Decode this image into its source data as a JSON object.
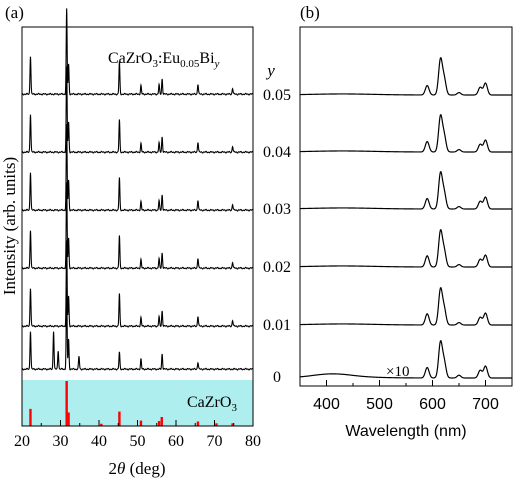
{
  "chart_data": [
    {
      "type": "line",
      "panel_label": "(a)",
      "xlabel_parts": [
        "2",
        "θ",
        " (deg)"
      ],
      "ylabel": "Intensity (arb. units)",
      "xlim": [
        20,
        80
      ],
      "xticks": [
        20,
        30,
        40,
        50,
        60,
        70,
        80
      ],
      "annotation_parts": [
        "CaZrO",
        "3",
        ":Eu",
        "0.05",
        "Bi",
        "y"
      ],
      "reference_label_parts": [
        "CaZrO",
        "3"
      ],
      "reference_color": "#ff0000",
      "reference_band_color": "#aeeeee",
      "trace_color": "#000000",
      "reference_lines": [
        {
          "x": 22.2,
          "value": 0.38
        },
        {
          "x": 31.6,
          "value": 1.0
        },
        {
          "x": 32.1,
          "value": 0.3
        },
        {
          "x": 40.6,
          "value": 0.05
        },
        {
          "x": 45.3,
          "value": 0.32
        },
        {
          "x": 50.9,
          "value": 0.12
        },
        {
          "x": 55.6,
          "value": 0.11
        },
        {
          "x": 56.3,
          "value": 0.2
        },
        {
          "x": 65.7,
          "value": 0.1
        },
        {
          "x": 70.5,
          "value": 0.06
        },
        {
          "x": 74.7,
          "value": 0.06
        }
      ],
      "series": [
        {
          "y": "0.05",
          "peaks": [
            [
              22.2,
              0.45
            ],
            [
              31.6,
              1.0
            ],
            [
              32.1,
              0.35
            ],
            [
              45.3,
              0.38
            ],
            [
              50.9,
              0.1
            ],
            [
              55.6,
              0.11
            ],
            [
              56.4,
              0.18
            ],
            [
              65.7,
              0.12
            ],
            [
              74.7,
              0.07
            ]
          ]
        },
        {
          "y": "0.04",
          "peaks": [
            [
              22.2,
              0.45
            ],
            [
              31.6,
              1.0
            ],
            [
              32.1,
              0.35
            ],
            [
              45.3,
              0.38
            ],
            [
              50.9,
              0.1
            ],
            [
              55.6,
              0.11
            ],
            [
              56.4,
              0.18
            ],
            [
              65.7,
              0.12
            ],
            [
              74.7,
              0.07
            ]
          ]
        },
        {
          "y": "0.03",
          "peaks": [
            [
              22.2,
              0.45
            ],
            [
              31.6,
              1.0
            ],
            [
              32.1,
              0.35
            ],
            [
              45.3,
              0.38
            ],
            [
              50.9,
              0.1
            ],
            [
              55.6,
              0.11
            ],
            [
              56.4,
              0.18
            ],
            [
              65.7,
              0.12
            ],
            [
              74.7,
              0.07
            ]
          ]
        },
        {
          "y": "0.02",
          "peaks": [
            [
              22.2,
              0.45
            ],
            [
              31.6,
              1.0
            ],
            [
              32.1,
              0.35
            ],
            [
              45.3,
              0.38
            ],
            [
              50.9,
              0.1
            ],
            [
              55.6,
              0.11
            ],
            [
              56.4,
              0.18
            ],
            [
              65.7,
              0.12
            ],
            [
              74.7,
              0.07
            ]
          ]
        },
        {
          "y": "0.01",
          "peaks": [
            [
              22.2,
              0.45
            ],
            [
              31.6,
              1.0
            ],
            [
              32.1,
              0.35
            ],
            [
              45.3,
              0.38
            ],
            [
              50.9,
              0.1
            ],
            [
              55.6,
              0.11
            ],
            [
              56.4,
              0.18
            ],
            [
              65.7,
              0.12
            ],
            [
              74.7,
              0.07
            ]
          ]
        },
        {
          "y": "0",
          "peaks": [
            [
              22.2,
              0.45
            ],
            [
              28.2,
              0.45
            ],
            [
              29.4,
              0.22
            ],
            [
              31.6,
              0.95
            ],
            [
              32.1,
              0.35
            ],
            [
              34.8,
              0.15
            ],
            [
              45.3,
              0.2
            ],
            [
              50.9,
              0.12
            ],
            [
              56.4,
              0.18
            ],
            [
              65.7,
              0.08
            ]
          ]
        }
      ]
    },
    {
      "type": "line",
      "panel_label": "(b)",
      "xlabel": "Wavelength (nm)",
      "xlim": [
        350,
        750
      ],
      "xticks": [
        400,
        500,
        600,
        700
      ],
      "legend_title": "y",
      "multiplier_label": "×10",
      "trace_color": "#000000",
      "series": [
        {
          "y": "0.05",
          "peaks": [
            [
              590,
              0.27
            ],
            [
              615,
              1.0
            ],
            [
              622,
              0.45
            ],
            [
              650,
              0.07
            ],
            [
              690,
              0.22
            ],
            [
              700,
              0.34
            ]
          ]
        },
        {
          "y": "0.04",
          "peaks": [
            [
              590,
              0.3
            ],
            [
              615,
              1.0
            ],
            [
              622,
              0.45
            ],
            [
              650,
              0.07
            ],
            [
              690,
              0.22
            ],
            [
              700,
              0.34
            ]
          ]
        },
        {
          "y": "0.03",
          "peaks": [
            [
              590,
              0.3
            ],
            [
              615,
              1.0
            ],
            [
              622,
              0.45
            ],
            [
              650,
              0.07
            ],
            [
              690,
              0.22
            ],
            [
              700,
              0.34
            ]
          ]
        },
        {
          "y": "0.02",
          "peaks": [
            [
              590,
              0.32
            ],
            [
              615,
              1.0
            ],
            [
              622,
              0.45
            ],
            [
              650,
              0.07
            ],
            [
              690,
              0.22
            ],
            [
              700,
              0.34
            ]
          ]
        },
        {
          "y": "0.01",
          "peaks": [
            [
              590,
              0.32
            ],
            [
              615,
              1.0
            ],
            [
              622,
              0.45
            ],
            [
              650,
              0.07
            ],
            [
              690,
              0.22
            ],
            [
              700,
              0.34
            ]
          ]
        },
        {
          "y": "0",
          "peaks": [
            [
              410,
              0.09
            ],
            [
              590,
              0.3
            ],
            [
              615,
              1.0
            ],
            [
              622,
              0.45
            ],
            [
              650,
              0.08
            ],
            [
              690,
              0.22
            ],
            [
              700,
              0.34
            ]
          ]
        }
      ]
    }
  ]
}
